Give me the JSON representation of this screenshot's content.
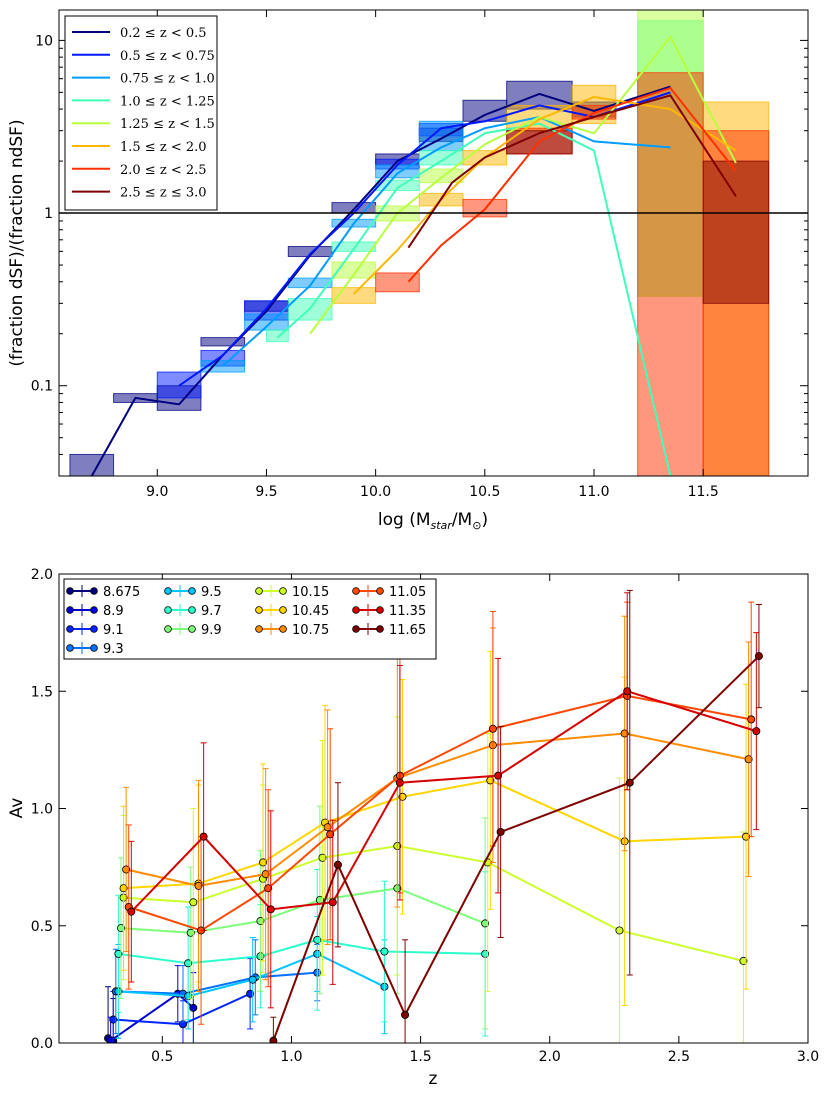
{
  "chart_data": [
    {
      "type": "line",
      "title": "",
      "xlabel": "log (M",
      "xlabel_sub": "star",
      "xlabel_mid": "/M",
      "xlabel_sun": "⊙",
      "xlabel_end": ")",
      "ylabel": "(fraction dSF)/(fraction ndSF)",
      "xlim": [
        8.55,
        11.98
      ],
      "ylim": [
        0.03,
        15
      ],
      "yscale": "log",
      "xticks": [
        "9.0",
        "9.5",
        "10.0",
        "10.5",
        "11.0",
        "11.5"
      ],
      "xtick_values": [
        9.0,
        9.5,
        10.0,
        10.5,
        11.0,
        11.5
      ],
      "yticks": [
        "0.1",
        "1",
        "10"
      ],
      "ytick_values": [
        0.1,
        1,
        10
      ],
      "reference_line": 1,
      "legend_position": "top-left",
      "series": [
        {
          "name": "0.2 ≤ z < 0.5",
          "color": "#00007f",
          "x": [
            8.7,
            8.9,
            9.1,
            9.3,
            9.5,
            9.7,
            9.9,
            10.1,
            10.3,
            10.5,
            10.75,
            11.0,
            11.35
          ],
          "y": [
            0.03,
            0.085,
            0.078,
            0.15,
            0.27,
            0.57,
            1.05,
            2.0,
            2.7,
            3.7,
            4.9,
            3.9,
            5.4
          ],
          "boxes": [
            [
              8.6,
              8.8,
              0.03,
              0.04
            ],
            [
              8.8,
              9.0,
              0.08,
              0.09
            ],
            [
              9.0,
              9.2,
              0.072,
              0.1
            ],
            [
              9.2,
              9.4,
              0.17,
              0.19
            ],
            [
              9.4,
              9.6,
              0.27,
              0.31
            ],
            [
              9.6,
              9.8,
              0.56,
              0.64
            ],
            [
              9.8,
              10.0,
              1.0,
              1.15
            ],
            [
              10.0,
              10.2,
              1.9,
              2.2
            ],
            [
              10.2,
              10.4,
              2.6,
              3.1
            ],
            [
              10.4,
              10.6,
              3.4,
              4.5
            ],
            [
              10.6,
              10.9,
              4.0,
              5.8
            ],
            [
              10.9,
              11.1,
              3.6,
              4.4
            ]
          ]
        },
        {
          "name": "0.5 ≤ z < 0.75",
          "color": "#0019ff",
          "x": [
            9.1,
            9.3,
            9.5,
            9.7,
            9.9,
            10.1,
            10.3,
            10.5,
            10.75,
            11.0,
            11.35
          ],
          "y": [
            0.1,
            0.15,
            0.28,
            0.58,
            1.0,
            1.9,
            3.1,
            3.4,
            4.2,
            3.6,
            5.0
          ],
          "boxes": [
            [
              9.0,
              9.2,
              0.085,
              0.12
            ],
            [
              9.2,
              9.4,
              0.13,
              0.16
            ],
            [
              9.4,
              9.6,
              0.24,
              0.31
            ],
            [
              10.0,
              10.2,
              1.8,
              2.05
            ],
            [
              10.2,
              10.4,
              2.8,
              3.3
            ]
          ]
        },
        {
          "name": "0.75 ≤ z < 1.0",
          "color": "#009cff",
          "x": [
            9.3,
            9.5,
            9.7,
            9.9,
            10.1,
            10.3,
            10.5,
            10.75,
            11.0,
            11.35
          ],
          "y": [
            0.13,
            0.22,
            0.38,
            0.87,
            1.7,
            2.4,
            3.1,
            3.6,
            2.6,
            2.4
          ],
          "boxes": [
            [
              9.2,
              9.4,
              0.12,
              0.14
            ],
            [
              9.4,
              9.6,
              0.21,
              0.26
            ],
            [
              9.6,
              9.8,
              0.37,
              0.42
            ],
            [
              9.8,
              10.0,
              0.83,
              0.92
            ],
            [
              10.0,
              10.2,
              1.6,
              1.9
            ],
            [
              10.2,
              10.4,
              2.3,
              3.4
            ]
          ]
        },
        {
          "name": "1.0 ≤ z < 1.25",
          "color": "#40ffb7",
          "x": [
            9.55,
            9.7,
            9.9,
            10.1,
            10.3,
            10.5,
            10.75,
            11.0,
            11.35
          ],
          "y": [
            0.19,
            0.28,
            0.62,
            1.4,
            2.0,
            2.9,
            3.3,
            2.3,
            0.03
          ],
          "boxes": [
            [
              9.5,
              9.6,
              0.18,
              0.21
            ],
            [
              9.6,
              9.8,
              0.24,
              0.32
            ],
            [
              9.8,
              10.0,
              0.6,
              0.68
            ],
            [
              10.0,
              10.2,
              1.35,
              1.55
            ],
            [
              10.2,
              10.4,
              1.9,
              2.3
            ],
            [
              11.2,
              11.5,
              0.33,
              13
            ]
          ]
        },
        {
          "name": "1.25 ≤ z < 1.5",
          "color": "#b7ff40",
          "x": [
            9.7,
            9.9,
            10.1,
            10.3,
            10.5,
            10.75,
            11.0,
            11.35,
            11.65
          ],
          "y": [
            0.2,
            0.44,
            1.0,
            1.6,
            2.5,
            3.6,
            2.9,
            10.5,
            1.95
          ],
          "boxes": [
            [
              9.8,
              10.0,
              0.42,
              0.52
            ],
            [
              10.0,
              10.2,
              0.9,
              1.1
            ],
            [
              10.2,
              10.4,
              1.5,
              1.8
            ],
            [
              11.2,
              11.5,
              0.33,
              15
            ]
          ]
        },
        {
          "name": "1.5 ≤ z < 2.0",
          "color": "#ffb600",
          "x": [
            9.9,
            10.1,
            10.3,
            10.5,
            10.75,
            11.0,
            11.35,
            11.65
          ],
          "y": [
            0.34,
            0.61,
            1.2,
            2.1,
            3.5,
            4.7,
            4.0,
            2.3
          ],
          "boxes": [
            [
              9.8,
              10.0,
              0.3,
              0.37
            ],
            [
              10.2,
              10.4,
              1.1,
              1.3
            ],
            [
              10.4,
              10.6,
              1.9,
              2.3
            ],
            [
              10.6,
              10.9,
              3.0,
              4.2
            ],
            [
              10.9,
              11.1,
              3.3,
              5.5
            ],
            [
              11.5,
              11.8,
              0.03,
              4.4
            ]
          ]
        },
        {
          "name": "2.0 ≤ z < 2.5",
          "color": "#ff3000",
          "x": [
            10.15,
            10.3,
            10.5,
            10.75,
            11.0,
            11.35,
            11.65
          ],
          "y": [
            0.4,
            0.65,
            1.05,
            2.6,
            3.8,
            5.3,
            1.75
          ],
          "boxes": [
            [
              10.0,
              10.2,
              0.35,
              0.45
            ],
            [
              10.4,
              10.6,
              0.95,
              1.2
            ],
            [
              10.6,
              10.9,
              2.2,
              3.1
            ],
            [
              10.9,
              11.1,
              3.5,
              4.2
            ],
            [
              11.2,
              11.5,
              0.03,
              6.5
            ],
            [
              11.5,
              11.8,
              0.03,
              3.0
            ]
          ]
        },
        {
          "name": "2.5 ≤ z ≤ 3.0",
          "color": "#7f0000",
          "x": [
            10.15,
            10.35,
            10.5,
            10.75,
            11.0,
            11.35,
            11.65
          ],
          "y": [
            0.63,
            1.5,
            2.1,
            2.9,
            3.6,
            4.8,
            1.25
          ],
          "boxes": [
            [
              10.6,
              10.9,
              2.2,
              3.0
            ],
            [
              11.5,
              11.8,
              0.3,
              2.0
            ]
          ]
        }
      ]
    },
    {
      "type": "line",
      "title": "",
      "xlabel": "z",
      "ylabel": "Av",
      "xlim": [
        0.1,
        3.0
      ],
      "ylim": [
        0.0,
        2.0
      ],
      "xticks": [
        "0.5",
        "1.0",
        "1.5",
        "2.0",
        "2.5",
        "3.0"
      ],
      "xtick_values": [
        0.5,
        1.0,
        1.5,
        2.0,
        2.5,
        3.0
      ],
      "yticks": [
        "0.0",
        "0.5",
        "1.0",
        "1.5",
        "2.0"
      ],
      "ytick_values": [
        0.0,
        0.5,
        1.0,
        1.5,
        2.0
      ],
      "legend_position": "top-left",
      "series": [
        {
          "name": "8.675",
          "color": "#00007f",
          "x": [
            0.29,
            0.31
          ],
          "y": [
            0.02,
            0.01
          ],
          "err": [
            0.22,
            0.18
          ]
        },
        {
          "name": "8.9",
          "color": "#0000d5",
          "x": [
            0.3,
            0.56,
            0.62
          ],
          "y": [
            0.01,
            0.21,
            0.15
          ],
          "err": [
            0.1,
            0.12,
            0.15
          ]
        },
        {
          "name": "9.1",
          "color": "#0025ff",
          "x": [
            0.31,
            0.58,
            0.84
          ],
          "y": [
            0.1,
            0.08,
            0.21
          ],
          "err": [
            0.12,
            0.1,
            0.15
          ]
        },
        {
          "name": "9.3",
          "color": "#0070ff",
          "x": [
            0.32,
            0.58,
            0.86,
            1.1
          ],
          "y": [
            0.22,
            0.21,
            0.28,
            0.3
          ],
          "err": [
            0.18,
            0.12,
            0.16,
            0.12
          ]
        },
        {
          "name": "9.5",
          "color": "#00c4ff",
          "x": [
            0.33,
            0.6,
            0.85,
            1.1,
            1.36
          ],
          "y": [
            0.22,
            0.2,
            0.27,
            0.38,
            0.24
          ],
          "err": [
            0.2,
            0.14,
            0.18,
            0.16,
            0.2
          ]
        },
        {
          "name": "9.7",
          "color": "#2affcd",
          "x": [
            0.33,
            0.6,
            0.88,
            1.1,
            1.36,
            1.75
          ],
          "y": [
            0.38,
            0.34,
            0.37,
            0.44,
            0.39,
            0.38
          ],
          "err": [
            0.25,
            0.24,
            0.22,
            0.3,
            0.3,
            0.35
          ]
        },
        {
          "name": "9.9",
          "color": "#7dff7a",
          "x": [
            0.34,
            0.61,
            0.88,
            1.11,
            1.41,
            1.75
          ],
          "y": [
            0.49,
            0.47,
            0.52,
            0.61,
            0.66,
            0.51
          ],
          "err": [
            0.3,
            0.28,
            0.3,
            0.4,
            0.45,
            0.45
          ]
        },
        {
          "name": "10.15",
          "color": "#cdff2a",
          "x": [
            0.35,
            0.62,
            0.89,
            1.12,
            1.41,
            1.76,
            2.27,
            2.75
          ],
          "y": [
            0.62,
            0.6,
            0.7,
            0.79,
            0.84,
            0.77,
            0.48,
            0.35
          ],
          "err": [
            0.35,
            0.4,
            0.4,
            0.5,
            0.55,
            0.55,
            0.65,
            0.55
          ]
        },
        {
          "name": "10.45",
          "color": "#ffd600",
          "x": [
            0.35,
            0.64,
            0.89,
            1.13,
            1.43,
            1.77,
            2.29,
            2.76
          ],
          "y": [
            0.66,
            0.68,
            0.77,
            0.94,
            1.05,
            1.12,
            0.86,
            0.88
          ],
          "err": [
            0.35,
            0.42,
            0.42,
            0.5,
            0.5,
            0.55,
            0.7,
            0.65
          ]
        },
        {
          "name": "10.75",
          "color": "#ff8c00",
          "x": [
            0.36,
            0.64,
            0.9,
            1.14,
            1.41,
            1.78,
            2.29,
            2.77
          ],
          "y": [
            0.74,
            0.67,
            0.72,
            0.92,
            1.13,
            1.27,
            1.32,
            1.21
          ],
          "err": [
            0.35,
            0.45,
            0.45,
            0.5,
            0.55,
            0.5,
            0.5,
            0.5
          ]
        },
        {
          "name": "11.05",
          "color": "#ff4800",
          "x": [
            0.37,
            0.65,
            0.91,
            1.15,
            1.42,
            1.78,
            2.3,
            2.78
          ],
          "y": [
            0.58,
            0.48,
            0.66,
            0.89,
            1.14,
            1.34,
            1.48,
            1.38
          ],
          "err": [
            0.35,
            0.4,
            0.42,
            0.45,
            0.5,
            0.5,
            0.4,
            0.5
          ]
        },
        {
          "name": "11.35",
          "color": "#d60000",
          "x": [
            0.38,
            0.66,
            0.92,
            1.16,
            1.42,
            1.8,
            2.3,
            2.8
          ],
          "y": [
            0.56,
            0.88,
            0.57,
            0.6,
            1.11,
            1.14,
            1.5,
            1.33
          ],
          "err": [
            0.3,
            0.4,
            0.42,
            0.35,
            0.5,
            0.5,
            0.42,
            0.42
          ]
        },
        {
          "name": "11.65",
          "color": "#7f0000",
          "x": [
            0.93,
            1.18,
            1.44,
            1.81,
            2.31,
            2.81
          ],
          "y": [
            0.01,
            0.76,
            0.12,
            0.9,
            1.11,
            1.65
          ],
          "err": [
            0.1,
            0.35,
            0.32,
            0.45,
            0.82,
            0.22
          ]
        }
      ]
    }
  ]
}
